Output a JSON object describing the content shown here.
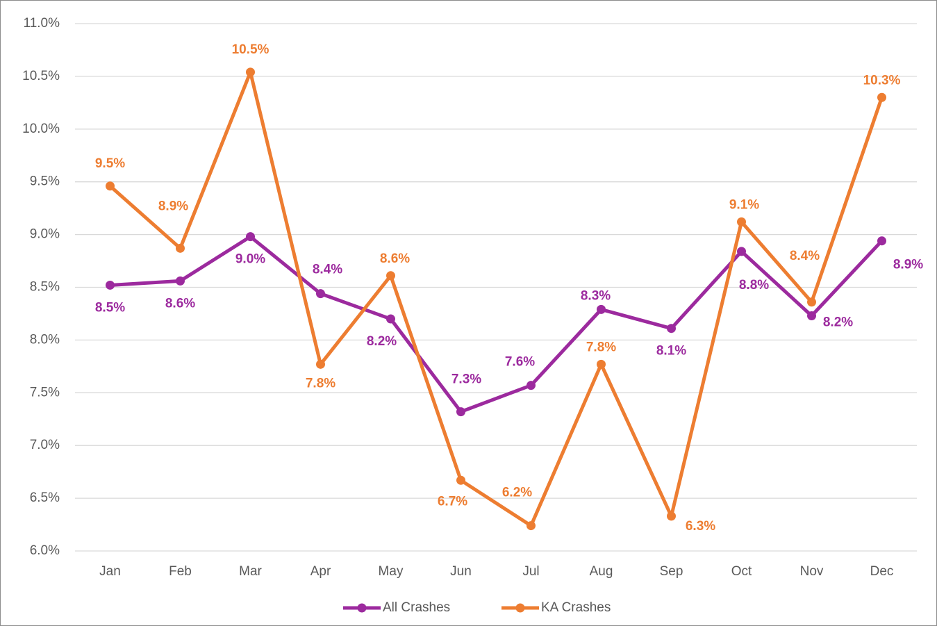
{
  "chart_data": {
    "type": "line",
    "categories": [
      "Jan",
      "Feb",
      "Mar",
      "Apr",
      "May",
      "Jun",
      "Jul",
      "Aug",
      "Sep",
      "Oct",
      "Nov",
      "Dec"
    ],
    "series": [
      {
        "name": "All Crashes",
        "color": "#9c2a9e",
        "values": [
          8.52,
          8.56,
          8.98,
          8.44,
          8.2,
          7.32,
          7.57,
          8.29,
          8.11,
          8.84,
          8.23,
          8.94
        ],
        "value_labels": [
          "8.5%",
          "8.6%",
          "9.0%",
          "8.4%",
          "8.2%",
          "7.3%",
          "7.6%",
          "8.3%",
          "8.1%",
          "8.8%",
          "8.2%",
          "8.9%"
        ]
      },
      {
        "name": "KA Crashes",
        "color": "#ed7d31",
        "values": [
          9.46,
          8.87,
          10.54,
          7.77,
          8.61,
          6.67,
          6.24,
          7.77,
          6.33,
          9.12,
          8.36,
          10.3
        ],
        "value_labels": [
          "9.5%",
          "8.9%",
          "10.5%",
          "7.8%",
          "8.6%",
          "6.7%",
          "6.2%",
          "7.8%",
          "6.3%",
          "9.1%",
          "8.4%",
          "10.3%"
        ]
      }
    ],
    "ylim": [
      6,
      11
    ],
    "yticks": [
      {
        "value": 6,
        "label": "6.0%"
      },
      {
        "value": 6.5,
        "label": "6.5%"
      },
      {
        "value": 7,
        "label": "7.0%"
      },
      {
        "value": 7.5,
        "label": "7.5%"
      },
      {
        "value": 8,
        "label": "8.0%"
      },
      {
        "value": 8.5,
        "label": "8.5%"
      },
      {
        "value": 9,
        "label": "9.0%"
      },
      {
        "value": 9.5,
        "label": "9.5%"
      },
      {
        "value": 10,
        "label": "10.0%"
      },
      {
        "value": 10.5,
        "label": "10.5%"
      },
      {
        "value": 11,
        "label": "11.0%"
      }
    ],
    "grid": true,
    "legend": "bottom"
  }
}
